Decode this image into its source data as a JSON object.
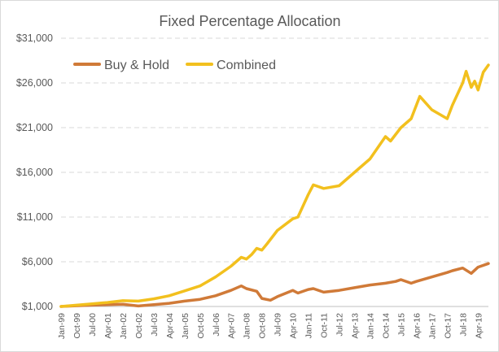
{
  "chart_data": {
    "type": "line",
    "title": "Fixed Percentage Allocation",
    "xlabel": "",
    "ylabel": "",
    "x_range": [
      "Jan-99",
      "Oct-19"
    ],
    "ylim": [
      1000,
      31000
    ],
    "yticks": [
      "$1,000",
      "$6,000",
      "$11,000",
      "$16,000",
      "$21,000",
      "$26,000",
      "$31,000"
    ],
    "ytick_values": [
      1000,
      6000,
      11000,
      16000,
      21000,
      26000,
      31000
    ],
    "xticks": [
      "Jan-99",
      "Oct-99",
      "Jul-00",
      "Apr-01",
      "Jan-02",
      "Oct-02",
      "Jul-03",
      "Apr-04",
      "Jan-05",
      "Oct-05",
      "Jul-06",
      "Apr-07",
      "Jan-08",
      "Oct-08",
      "Jul-09",
      "Apr-10",
      "Jan-11",
      "Oct-11",
      "Jul-12",
      "Apr-13",
      "Jan-14",
      "Oct-14",
      "Jul-15",
      "Apr-16",
      "Jan-17",
      "Oct-17",
      "Jul-18",
      "Apr-19"
    ],
    "grid": true,
    "legend_position": "top-left",
    "series": [
      {
        "name": "Buy & Hold",
        "color": "#d07a38",
        "points": [
          [
            "Jan-99",
            1000
          ],
          [
            "Oct-99",
            1080
          ],
          [
            "Jul-00",
            1150
          ],
          [
            "Apr-01",
            1200
          ],
          [
            "Jan-02",
            1250
          ],
          [
            "Oct-02",
            1050
          ],
          [
            "Jul-03",
            1200
          ],
          [
            "Apr-04",
            1350
          ],
          [
            "Jan-05",
            1600
          ],
          [
            "Oct-05",
            1800
          ],
          [
            "Jul-06",
            2200
          ],
          [
            "Apr-07",
            2800
          ],
          [
            "Oct-07",
            3300
          ],
          [
            "Jan-08",
            3000
          ],
          [
            "Jul-08",
            2700
          ],
          [
            "Oct-08",
            1900
          ],
          [
            "Mar-09",
            1700
          ],
          [
            "Jul-09",
            2100
          ],
          [
            "Apr-10",
            2800
          ],
          [
            "Jul-10",
            2500
          ],
          [
            "Jan-11",
            2900
          ],
          [
            "Apr-11",
            3000
          ],
          [
            "Oct-11",
            2600
          ],
          [
            "Jul-12",
            2800
          ],
          [
            "Apr-13",
            3100
          ],
          [
            "Jan-14",
            3400
          ],
          [
            "Oct-14",
            3600
          ],
          [
            "Apr-15",
            3800
          ],
          [
            "Jul-15",
            4000
          ],
          [
            "Jan-16",
            3600
          ],
          [
            "Apr-16",
            3800
          ],
          [
            "Jan-17",
            4300
          ],
          [
            "Oct-17",
            4800
          ],
          [
            "Jan-18",
            5000
          ],
          [
            "Jul-18",
            5300
          ],
          [
            "Dec-18",
            4700
          ],
          [
            "Apr-19",
            5400
          ],
          [
            "Oct-19",
            5800
          ]
        ]
      },
      {
        "name": "Combined",
        "color": "#f2c01e",
        "points": [
          [
            "Jan-99",
            1000
          ],
          [
            "Oct-99",
            1150
          ],
          [
            "Jul-00",
            1300
          ],
          [
            "Apr-01",
            1450
          ],
          [
            "Jan-02",
            1650
          ],
          [
            "Oct-02",
            1600
          ],
          [
            "Jul-03",
            1850
          ],
          [
            "Apr-04",
            2200
          ],
          [
            "Jan-05",
            2750
          ],
          [
            "Oct-05",
            3300
          ],
          [
            "Jul-06",
            4300
          ],
          [
            "Apr-07",
            5500
          ],
          [
            "Oct-07",
            6500
          ],
          [
            "Jan-08",
            6300
          ],
          [
            "Apr-08",
            6800
          ],
          [
            "Jul-08",
            7500
          ],
          [
            "Oct-08",
            7300
          ],
          [
            "Jan-09",
            8000
          ],
          [
            "Jul-09",
            9500
          ],
          [
            "Apr-10",
            10800
          ],
          [
            "Jul-10",
            11000
          ],
          [
            "Jan-11",
            13500
          ],
          [
            "Apr-11",
            14600
          ],
          [
            "Oct-11",
            14200
          ],
          [
            "Jul-12",
            14500
          ],
          [
            "Apr-13",
            16000
          ],
          [
            "Jan-14",
            17500
          ],
          [
            "Oct-14",
            20000
          ],
          [
            "Jan-15",
            19500
          ],
          [
            "Jul-15",
            21000
          ],
          [
            "Jan-16",
            22000
          ],
          [
            "Jun-16",
            24500
          ],
          [
            "Jan-17",
            23000
          ],
          [
            "Oct-17",
            22000
          ],
          [
            "Jan-18",
            23500
          ],
          [
            "Jul-18",
            26000
          ],
          [
            "Sep-18",
            27300
          ],
          [
            "Dec-18",
            25500
          ],
          [
            "Feb-19",
            26200
          ],
          [
            "Apr-19",
            25200
          ],
          [
            "Jul-19",
            27200
          ],
          [
            "Oct-19",
            28000
          ]
        ]
      }
    ]
  }
}
